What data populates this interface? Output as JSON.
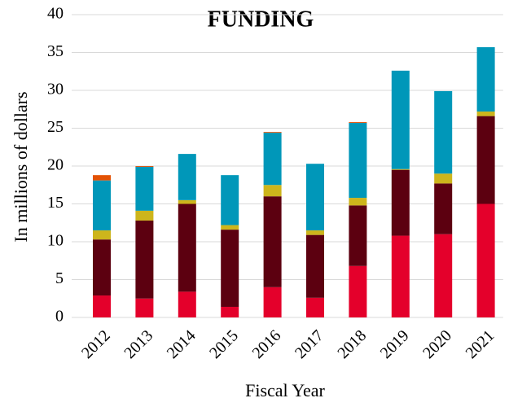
{
  "chart_data": {
    "type": "stacked_bar",
    "title": "FUNDING",
    "x_label": "Fiscal Year",
    "y_label": "In millions of dollars",
    "categories": [
      "2012",
      "2013",
      "2014",
      "2015",
      "2016",
      "2017",
      "2018",
      "2019",
      "2020",
      "2021"
    ],
    "series": [
      {
        "color": "#e4002b",
        "values": [
          2.9,
          2.5,
          3.4,
          1.4,
          4.0,
          2.6,
          6.8,
          10.8,
          11.0,
          15.0
        ]
      },
      {
        "color": "#5c0010",
        "values": [
          7.4,
          10.3,
          11.6,
          10.2,
          12.0,
          8.3,
          8.0,
          8.7,
          6.7,
          11.6
        ]
      },
      {
        "color": "#cdb51c",
        "values": [
          1.2,
          1.3,
          0.5,
          0.6,
          1.5,
          0.6,
          1.0,
          0.1,
          1.3,
          0.6
        ]
      },
      {
        "color": "#0097b9",
        "values": [
          6.6,
          5.8,
          6.1,
          6.6,
          6.9,
          8.8,
          9.9,
          13.0,
          10.9,
          8.5
        ]
      },
      {
        "color": "#e35205",
        "values": [
          0.7,
          0.1,
          0,
          0,
          0.1,
          0,
          0.1,
          0,
          0,
          0
        ]
      }
    ],
    "ylim": [
      0,
      40
    ],
    "yticks": [
      0,
      5,
      10,
      15,
      20,
      25,
      30,
      35,
      40
    ],
    "grid": true
  }
}
